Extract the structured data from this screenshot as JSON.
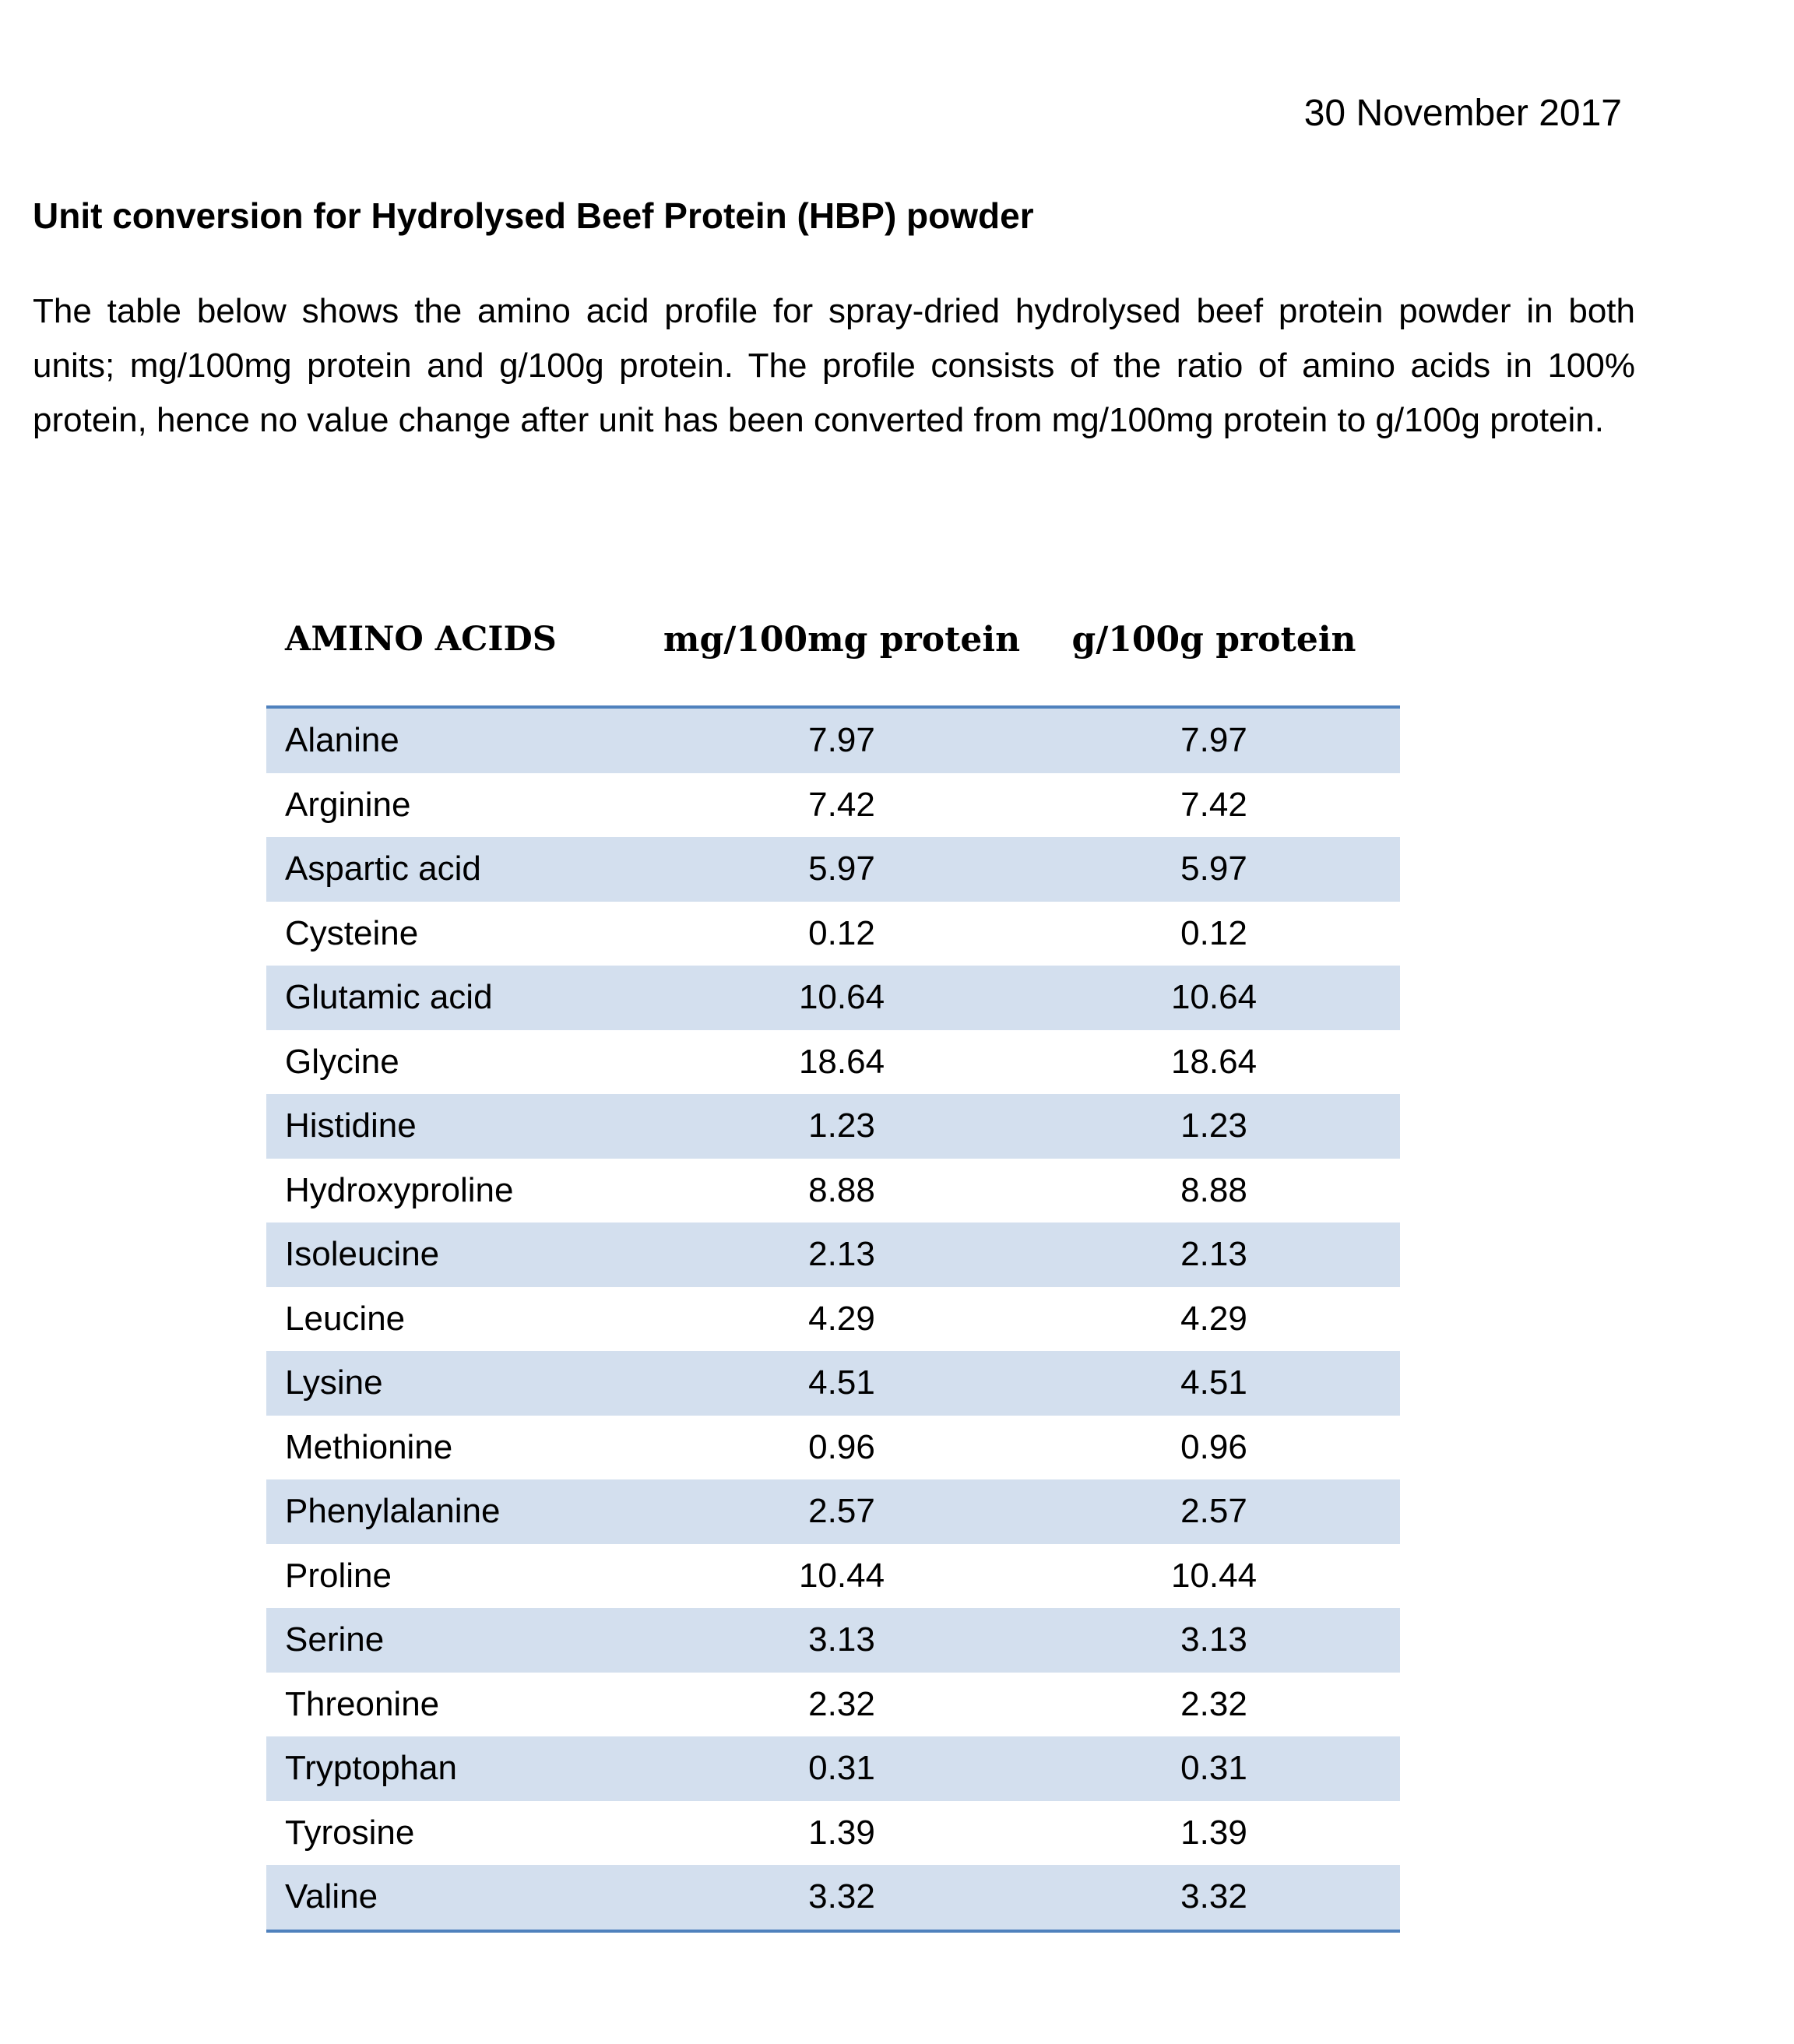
{
  "date": "30 November 2017",
  "title": "Unit conversion for Hydrolysed Beef Protein (HBP) powder",
  "intro": "The table below shows the amino acid profile for spray-dried hydrolysed beef protein powder in both units; mg/100mg protein and g/100g protein. The profile consists of the ratio of amino acids in 100% protein, hence no value change after unit has been converted from mg/100mg protein to g/100g protein.",
  "table": {
    "headers": [
      "AMINO ACIDS",
      "mg/100mg protein",
      "g/100g protein"
    ],
    "rows": [
      [
        "Alanine",
        "7.97",
        "7.97"
      ],
      [
        "Arginine",
        "7.42",
        "7.42"
      ],
      [
        "Aspartic acid",
        "5.97",
        "5.97"
      ],
      [
        "Cysteine",
        "0.12",
        "0.12"
      ],
      [
        "Glutamic acid",
        "10.64",
        "10.64"
      ],
      [
        "Glycine",
        "18.64",
        "18.64"
      ],
      [
        "Histidine",
        "1.23",
        "1.23"
      ],
      [
        "Hydroxyproline",
        "8.88",
        "8.88"
      ],
      [
        "Isoleucine",
        "2.13",
        "2.13"
      ],
      [
        "Leucine",
        "4.29",
        "4.29"
      ],
      [
        "Lysine",
        "4.51",
        "4.51"
      ],
      [
        "Methionine",
        "0.96",
        "0.96"
      ],
      [
        "Phenylalanine",
        "2.57",
        "2.57"
      ],
      [
        "Proline",
        "10.44",
        "10.44"
      ],
      [
        "Serine",
        "3.13",
        "3.13"
      ],
      [
        "Threonine",
        "2.32",
        "2.32"
      ],
      [
        "Tryptophan",
        "0.31",
        "0.31"
      ],
      [
        "Tyrosine",
        "1.39",
        "1.39"
      ],
      [
        "Valine",
        "3.32",
        "3.32"
      ]
    ]
  },
  "colors": {
    "band": "#d3dfee",
    "rule": "#4f81bd"
  }
}
